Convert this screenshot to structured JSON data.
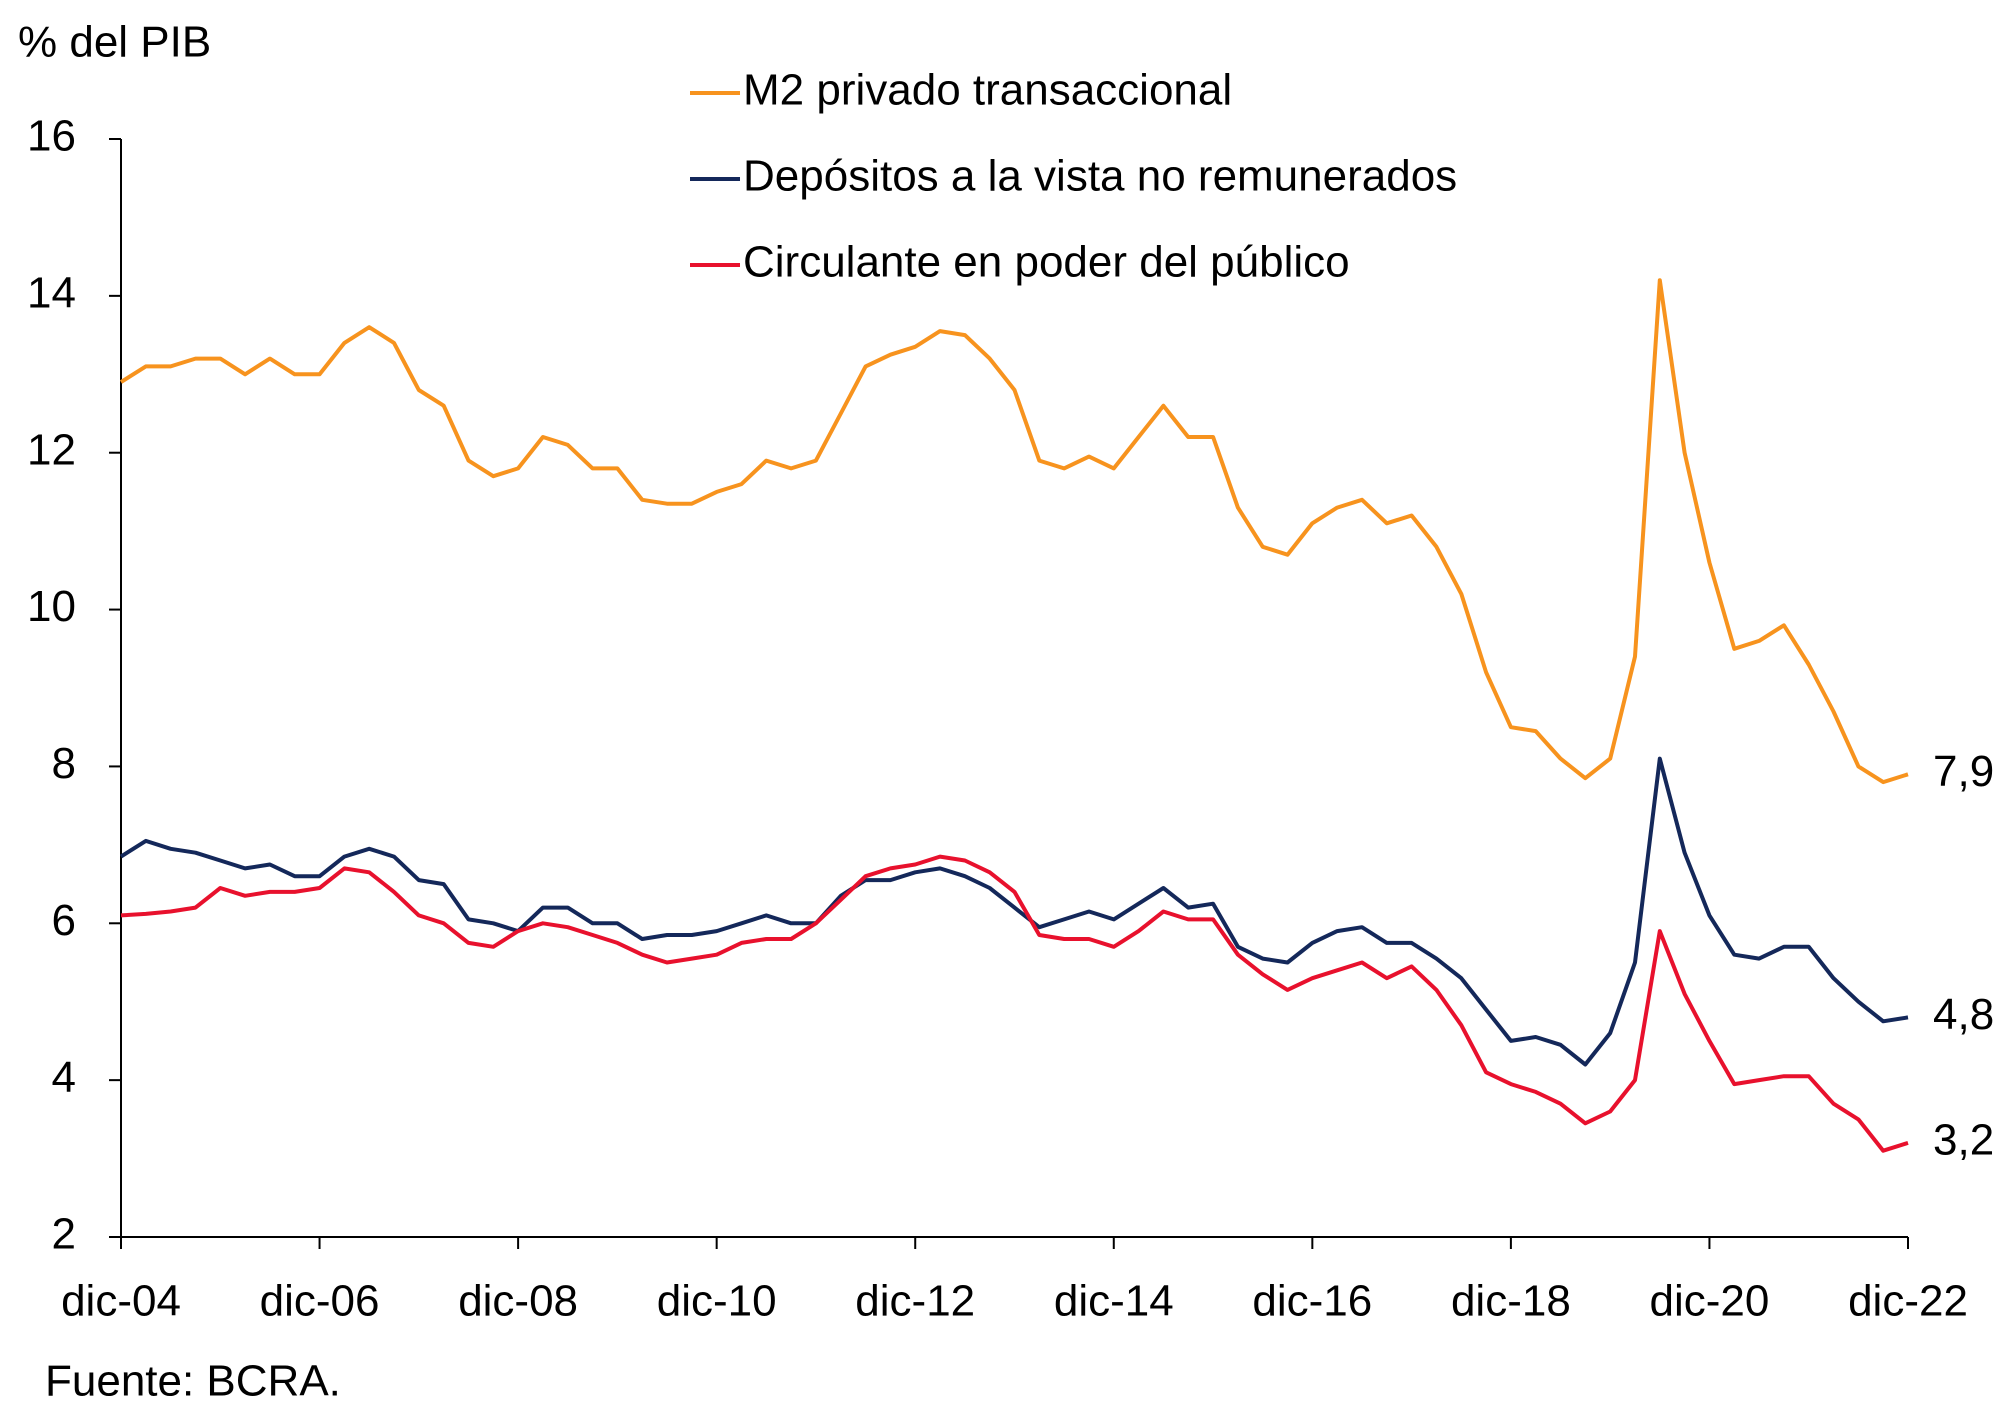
{
  "chart_data": {
    "type": "line",
    "y_label": "% del PIB",
    "source": "Fuente: BCRA.",
    "categories": [
      "dic-04",
      null,
      null,
      null,
      null,
      null,
      null,
      null,
      "dic-06",
      null,
      null,
      null,
      null,
      null,
      null,
      null,
      "dic-08",
      null,
      null,
      null,
      null,
      null,
      null,
      null,
      "dic-10",
      null,
      null,
      null,
      null,
      null,
      null,
      null,
      "dic-12",
      null,
      null,
      null,
      null,
      null,
      null,
      null,
      "dic-14",
      null,
      null,
      null,
      null,
      null,
      null,
      null,
      "dic-16",
      null,
      null,
      null,
      null,
      null,
      null,
      null,
      "dic-18",
      null,
      null,
      null,
      null,
      null,
      null,
      null,
      "dic-20",
      null,
      null,
      null,
      null,
      null,
      null,
      null,
      "dic-22"
    ],
    "ylim": [
      2,
      16
    ],
    "yticks": [
      2,
      4,
      6,
      8,
      10,
      12,
      14,
      16
    ],
    "grid": false,
    "series": [
      {
        "name": "M2 privado transaccional",
        "color": "#f7931e",
        "values": [
          12.9,
          13.1,
          13.1,
          13.2,
          13.2,
          13.0,
          13.2,
          13.0,
          13.0,
          13.4,
          13.6,
          13.4,
          12.8,
          12.6,
          11.9,
          11.7,
          11.8,
          12.2,
          12.1,
          11.8,
          11.8,
          11.4,
          11.35,
          11.35,
          11.5,
          11.6,
          11.9,
          11.8,
          11.9,
          12.5,
          13.1,
          13.25,
          13.35,
          13.55,
          13.5,
          13.2,
          12.8,
          11.9,
          11.8,
          11.95,
          11.8,
          12.2,
          12.6,
          12.2,
          12.2,
          11.3,
          10.8,
          10.7,
          11.1,
          11.3,
          11.4,
          11.1,
          11.2,
          10.8,
          10.2,
          9.2,
          8.5,
          8.45,
          8.1,
          7.85,
          8.1,
          9.4,
          14.2,
          12.0,
          10.6,
          9.5,
          9.6,
          9.8,
          9.3,
          8.7,
          8.0,
          7.8,
          7.9
        ],
        "value_labels": [
          null,
          null,
          null,
          null,
          null,
          null,
          null,
          null,
          null,
          null,
          null,
          null,
          null,
          null,
          null,
          null,
          null,
          null,
          null,
          null,
          null,
          null,
          null,
          null,
          null,
          null,
          null,
          null,
          null,
          null,
          null,
          null,
          null,
          null,
          null,
          null,
          null,
          null,
          null,
          null,
          null,
          null,
          null,
          null,
          null,
          null,
          null,
          null,
          null,
          null,
          null,
          null,
          null,
          null,
          null,
          null,
          null,
          null,
          null,
          null,
          null,
          null,
          null,
          null,
          null,
          null,
          null,
          null,
          null,
          null,
          null,
          null,
          "7,9"
        ]
      },
      {
        "name": "Depósitos a la vista no remunerados",
        "color": "#14285a",
        "values": [
          6.85,
          7.05,
          6.95,
          6.9,
          6.8,
          6.7,
          6.75,
          6.6,
          6.6,
          6.85,
          6.95,
          6.85,
          6.55,
          6.5,
          6.05,
          6.0,
          5.9,
          6.2,
          6.2,
          6.0,
          6.0,
          5.8,
          5.85,
          5.85,
          5.9,
          6.0,
          6.1,
          6.0,
          6.0,
          6.35,
          6.55,
          6.55,
          6.65,
          6.7,
          6.6,
          6.45,
          6.2,
          5.95,
          6.05,
          6.15,
          6.05,
          6.25,
          6.45,
          6.2,
          6.25,
          5.7,
          5.55,
          5.5,
          5.75,
          5.9,
          5.95,
          5.75,
          5.75,
          5.55,
          5.3,
          4.9,
          4.5,
          4.55,
          4.45,
          4.2,
          4.6,
          5.5,
          8.1,
          6.9,
          6.1,
          5.6,
          5.55,
          5.7,
          5.7,
          5.3,
          5.0,
          4.75,
          4.8
        ],
        "value_labels": [
          null,
          null,
          null,
          null,
          null,
          null,
          null,
          null,
          null,
          null,
          null,
          null,
          null,
          null,
          null,
          null,
          null,
          null,
          null,
          null,
          null,
          null,
          null,
          null,
          null,
          null,
          null,
          null,
          null,
          null,
          null,
          null,
          null,
          null,
          null,
          null,
          null,
          null,
          null,
          null,
          null,
          null,
          null,
          null,
          null,
          null,
          null,
          null,
          null,
          null,
          null,
          null,
          null,
          null,
          null,
          null,
          null,
          null,
          null,
          null,
          null,
          null,
          null,
          null,
          null,
          null,
          null,
          null,
          null,
          null,
          null,
          null,
          "4,8"
        ]
      },
      {
        "name": "Circulante en poder del público",
        "color": "#e8112d",
        "values": [
          6.1,
          6.12,
          6.15,
          6.2,
          6.45,
          6.35,
          6.4,
          6.4,
          6.45,
          6.7,
          6.65,
          6.4,
          6.1,
          6.0,
          5.75,
          5.7,
          5.9,
          6.0,
          5.95,
          5.85,
          5.75,
          5.6,
          5.5,
          5.55,
          5.6,
          5.75,
          5.8,
          5.8,
          6.0,
          6.3,
          6.6,
          6.7,
          6.75,
          6.85,
          6.8,
          6.65,
          6.4,
          5.85,
          5.8,
          5.8,
          5.7,
          5.9,
          6.15,
          6.05,
          6.05,
          5.6,
          5.35,
          5.15,
          5.3,
          5.4,
          5.5,
          5.3,
          5.45,
          5.15,
          4.7,
          4.1,
          3.95,
          3.85,
          3.7,
          3.45,
          3.6,
          4.0,
          5.9,
          5.1,
          4.5,
          3.95,
          4.0,
          4.05,
          4.05,
          3.7,
          3.5,
          3.1,
          3.2
        ],
        "value_labels": [
          null,
          null,
          null,
          null,
          null,
          null,
          null,
          null,
          null,
          null,
          null,
          null,
          null,
          null,
          null,
          null,
          null,
          null,
          null,
          null,
          null,
          null,
          null,
          null,
          null,
          null,
          null,
          null,
          null,
          null,
          null,
          null,
          null,
          null,
          null,
          null,
          null,
          null,
          null,
          null,
          null,
          null,
          null,
          null,
          null,
          null,
          null,
          null,
          null,
          null,
          null,
          null,
          null,
          null,
          null,
          null,
          null,
          null,
          null,
          null,
          null,
          null,
          null,
          null,
          null,
          null,
          null,
          null,
          null,
          null,
          null,
          null,
          "3,2"
        ]
      }
    ]
  }
}
